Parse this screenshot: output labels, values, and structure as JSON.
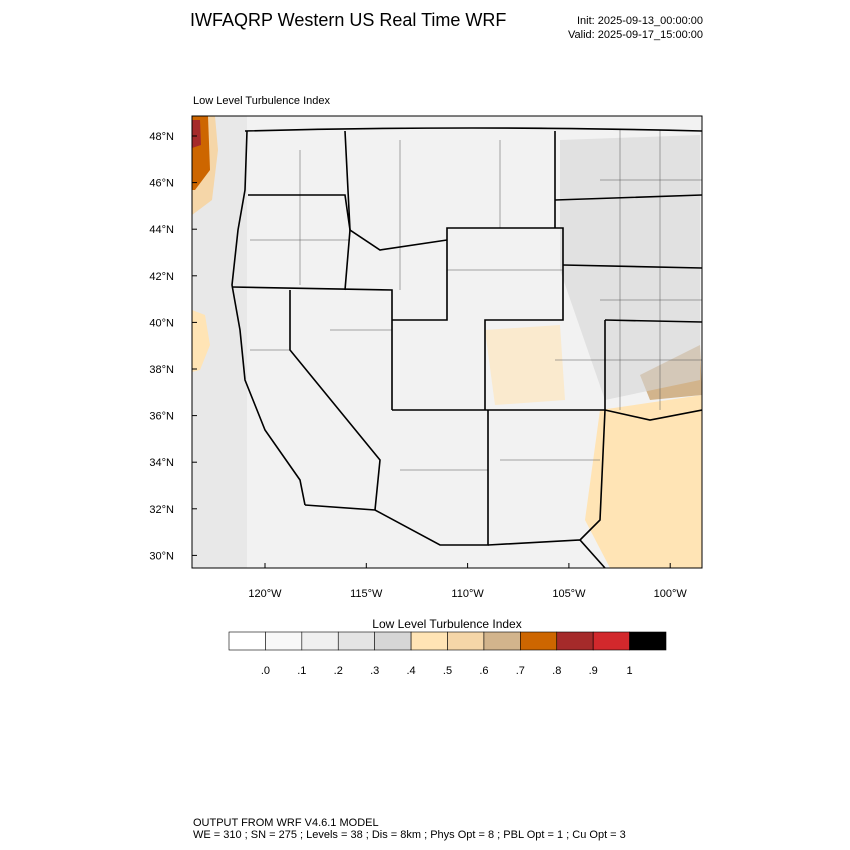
{
  "header": {
    "title": "IWFAQRP Western US Real Time WRF",
    "init": "Init: 2025-09-13_00:00:00",
    "valid": "Valid: 2025-09-17_15:00:00"
  },
  "map": {
    "subtitle": "Low Level Turbulence Index",
    "lat_labels": [
      "48°N",
      "46°N",
      "44°N",
      "42°N",
      "40°N",
      "38°N",
      "36°N",
      "34°N",
      "32°N",
      "30°N"
    ],
    "lon_labels": [
      "120°W",
      "115°W",
      "110°W",
      "105°W",
      "100°W"
    ]
  },
  "colorbar": {
    "title": "Low Level Turbulence Index",
    "colors": [
      "#ffffff",
      "#f8f8f8",
      "#f0f0f0",
      "#e4e4e4",
      "#d6d6d6",
      "#ffe4b5",
      "#f5d6a8",
      "#d2b48c",
      "#cd6600",
      "#a52a2a",
      "#d2282c",
      "#000000"
    ],
    "labels": [
      ".0",
      ".1",
      ".2",
      ".3",
      ".4",
      ".5",
      ".6",
      ".7",
      ".8",
      ".9",
      "1"
    ]
  },
  "footer": {
    "line1": "OUTPUT FROM WRF V4.6.1 MODEL",
    "line2": "WE = 310 ; SN = 275 ; Levels = 38 ; Dis = 8km ; Phys Opt = 8 ; PBL Opt = 1 ; Cu Opt = 3"
  }
}
